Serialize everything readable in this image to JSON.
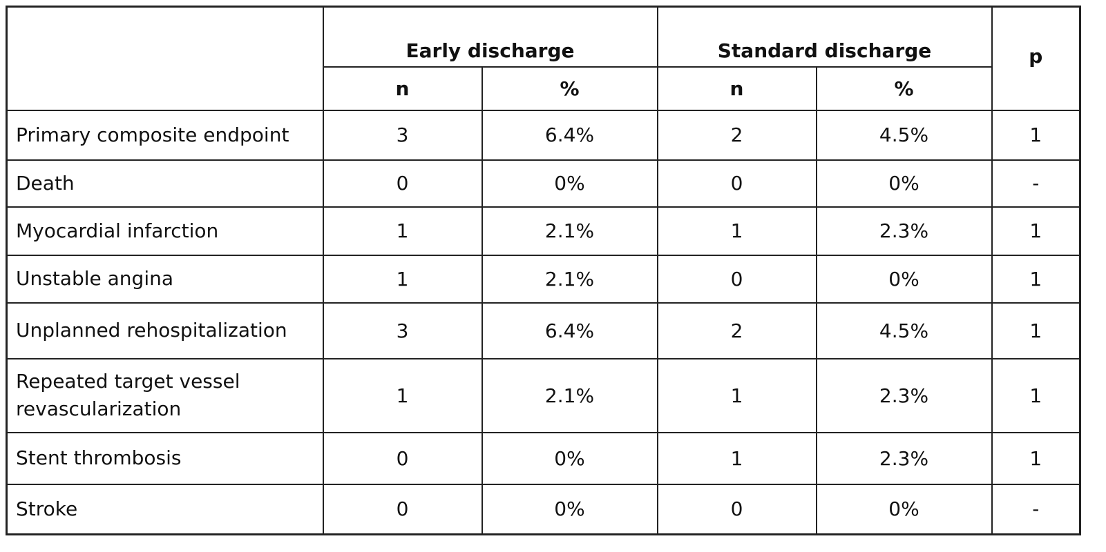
{
  "table": {
    "group_headers": [
      "Early discharge",
      "Standard discharge"
    ],
    "p_header": "p",
    "sub_headers": [
      "n",
      "%",
      "n",
      "%"
    ],
    "rows": [
      [
        "Primary composite endpoint",
        3,
        "6.4%",
        2,
        "4.5%",
        1
      ],
      [
        "Death",
        0,
        "0%",
        0,
        "0%",
        "-"
      ],
      [
        "Myocardial infarction",
        1,
        "2.1%",
        1,
        "2.3%",
        1
      ],
      [
        "Unstable angina",
        1,
        "2.1%",
        0,
        "0%",
        1
      ],
      [
        "Unplanned rehospitalization",
        3,
        "6.4%",
        2,
        "4.5%",
        1
      ],
      [
        "Repeated target vessel revascularization",
        1,
        "2.1%",
        1,
        "2.3%",
        1
      ],
      [
        "Stent thrombosis",
        0,
        "0%",
        1,
        "2.3%",
        1
      ],
      [
        "Stroke",
        0,
        "0%",
        0,
        "0%",
        "-"
      ]
    ]
  }
}
